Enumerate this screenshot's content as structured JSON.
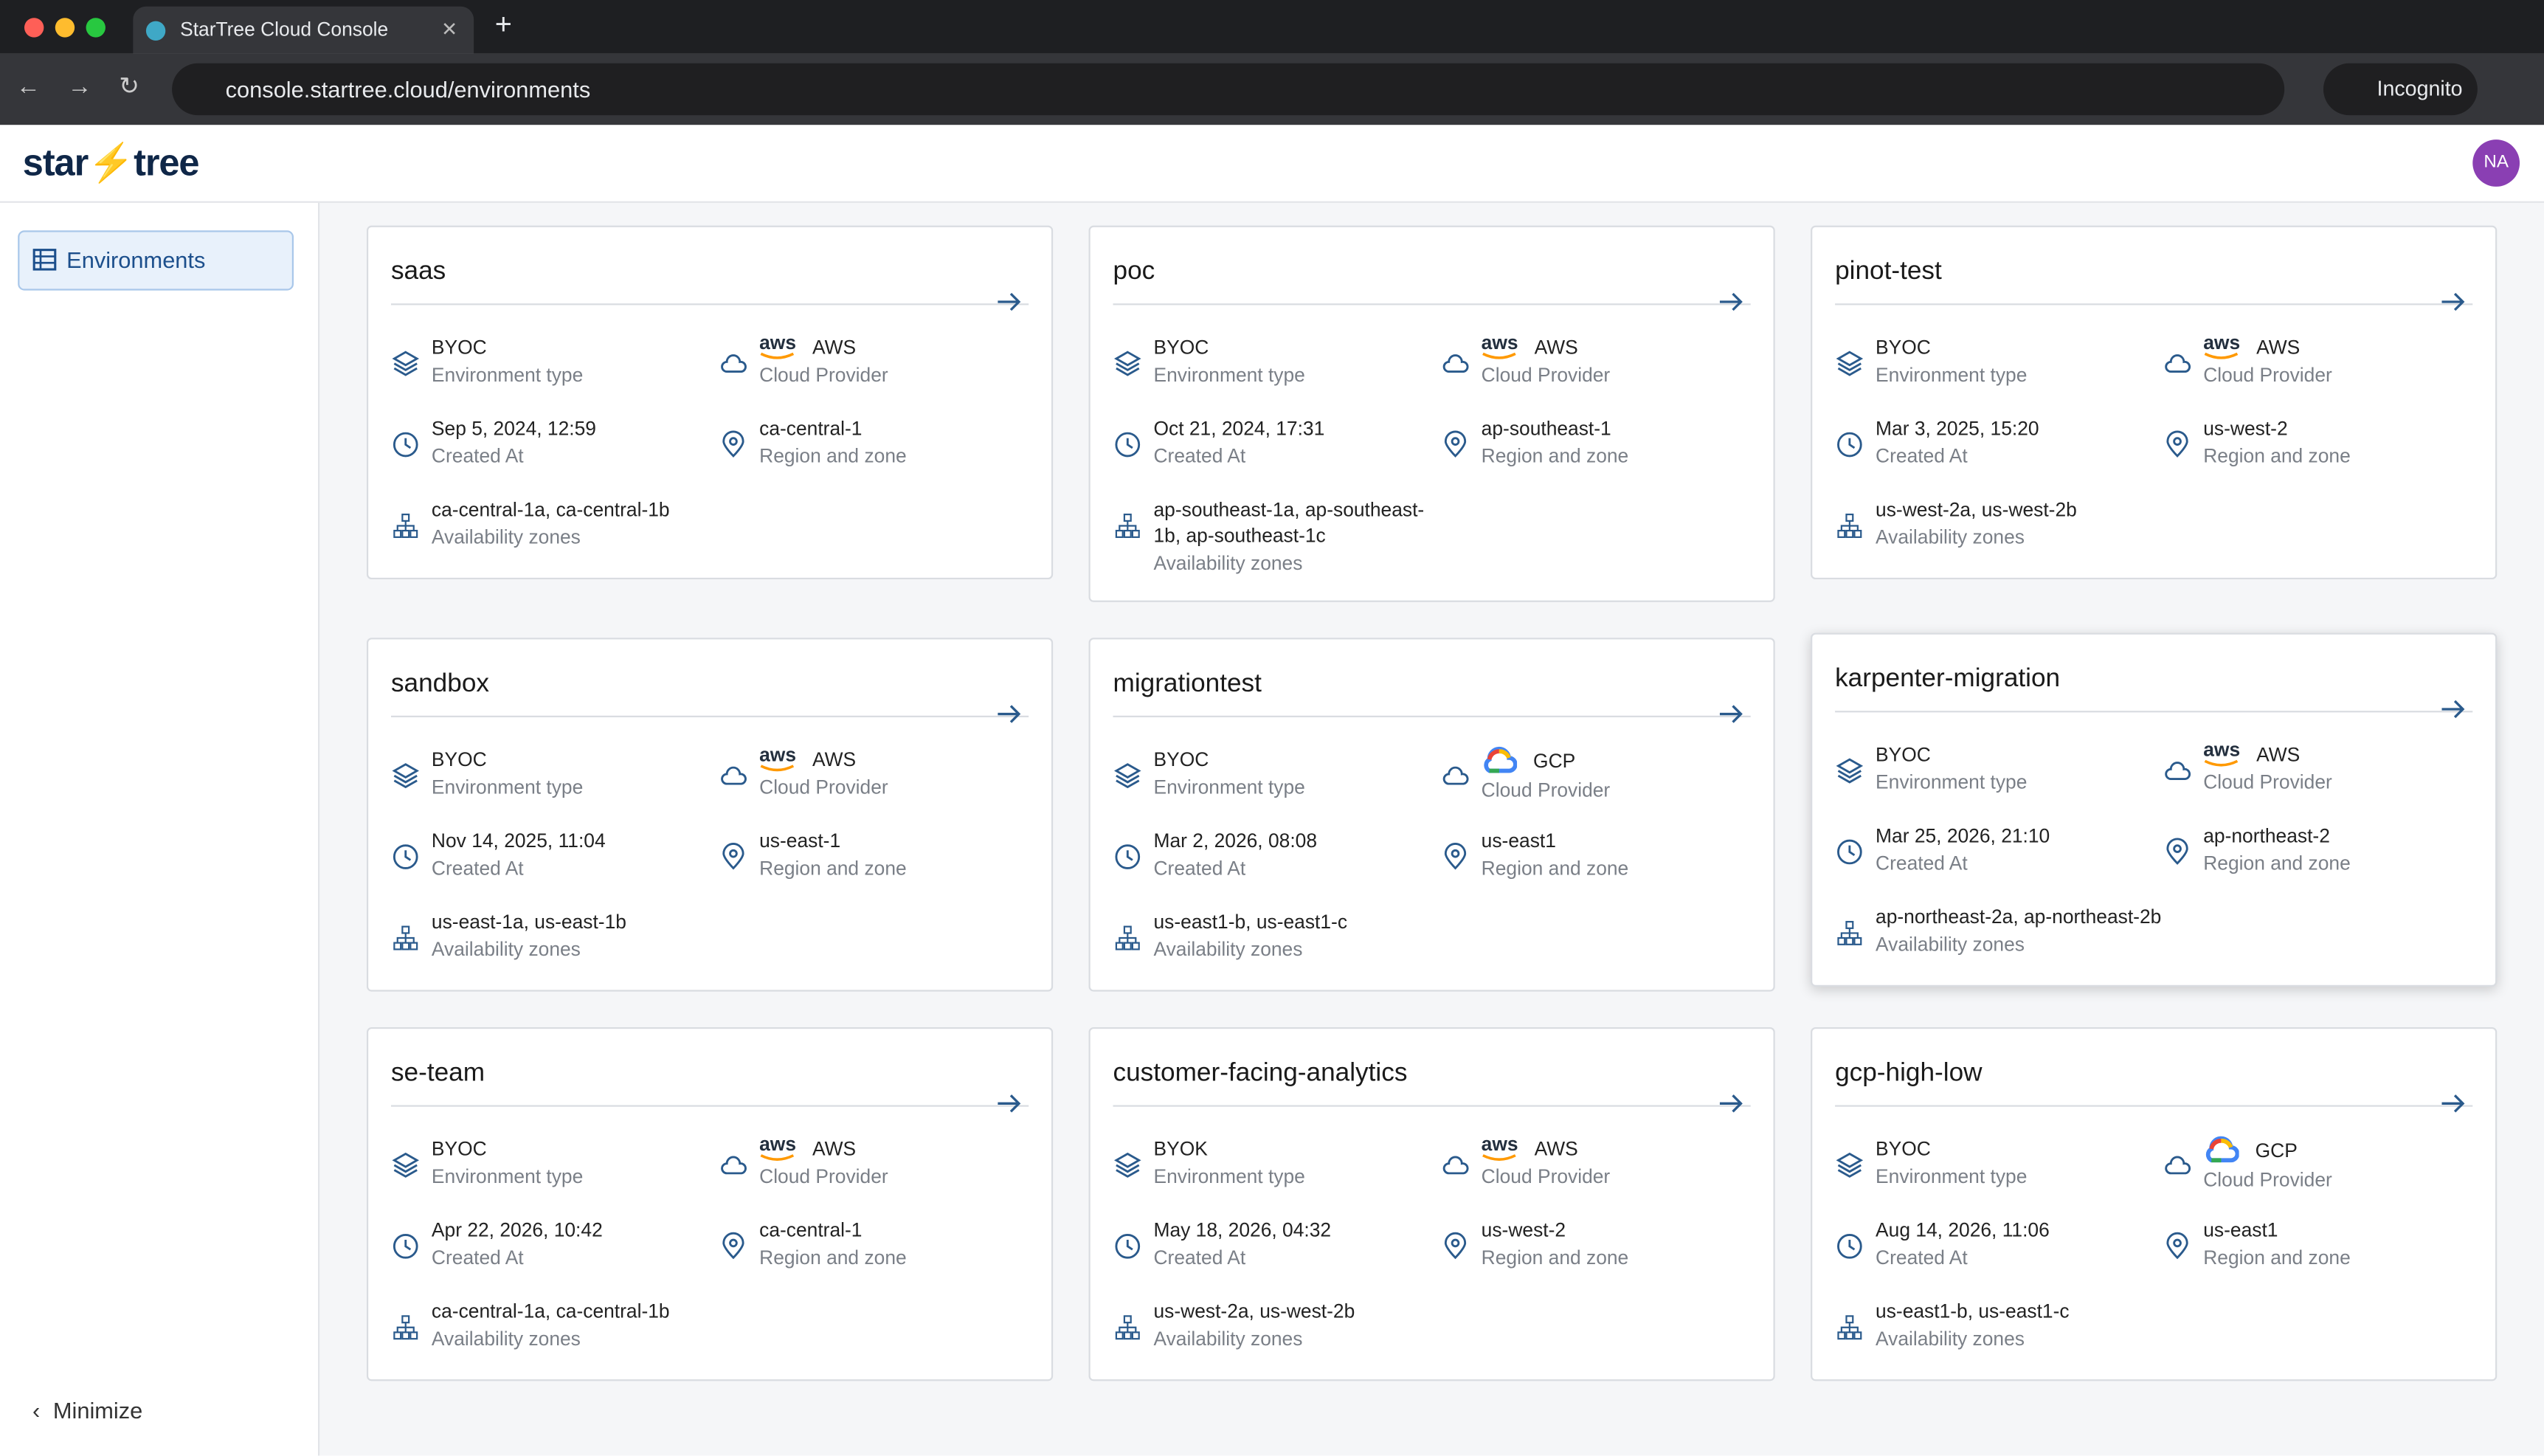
{
  "browser": {
    "tab_title": "StarTree Cloud Console",
    "url": "console.startree.cloud/environments",
    "incognito": "Incognito"
  },
  "header": {
    "logo_left": "star",
    "logo_right": "tree",
    "avatar": "NA"
  },
  "sidebar": {
    "nav": "Environments",
    "minimize": "Minimize"
  },
  "cards": [
    {
      "name": "saas",
      "type": {
        "value": "BYOC",
        "label": "Environment type"
      },
      "provider": {
        "logo": "aws",
        "value": "AWS",
        "label": "Cloud Provider"
      },
      "created": {
        "value": "Sep 5, 2024, 12:59",
        "label": "Created At"
      },
      "region": {
        "value": "ca-central-1",
        "label": "Region and zone"
      },
      "zones": {
        "value": "ca-central-1a, ca-central-1b",
        "label": "Availability zones"
      }
    },
    {
      "name": "poc",
      "type": {
        "value": "BYOC",
        "label": "Environment type"
      },
      "provider": {
        "logo": "aws",
        "value": "AWS",
        "label": "Cloud Provider"
      },
      "created": {
        "value": "Oct 21, 2024, 17:31",
        "label": "Created At"
      },
      "region": {
        "value": "ap-southeast-1",
        "label": "Region and zone"
      },
      "zones": {
        "value": "ap-southeast-1a, ap-southeast-1b, ap-southeast-1c",
        "label": "Availability zones"
      }
    },
    {
      "name": "pinot-test",
      "type": {
        "value": "BYOC",
        "label": "Environment type"
      },
      "provider": {
        "logo": "aws",
        "value": "AWS",
        "label": "Cloud Provider"
      },
      "created": {
        "value": "Mar 3, 2025, 15:20",
        "label": "Created At"
      },
      "region": {
        "value": "us-west-2",
        "label": "Region and zone"
      },
      "zones": {
        "value": "us-west-2a, us-west-2b",
        "label": "Availability zones"
      }
    },
    {
      "name": "sandbox",
      "type": {
        "value": "BYOC",
        "label": "Environment type"
      },
      "provider": {
        "logo": "aws",
        "value": "AWS",
        "label": "Cloud Provider"
      },
      "created": {
        "value": "Nov 14, 2025, 11:04",
        "label": "Created At"
      },
      "region": {
        "value": "us-east-1",
        "label": "Region and zone"
      },
      "zones": {
        "value": "us-east-1a, us-east-1b",
        "label": "Availability zones"
      }
    },
    {
      "name": "migrationtest",
      "type": {
        "value": "BYOC",
        "label": "Environment type"
      },
      "provider": {
        "value": "GCP",
        "label": "Cloud Provider"
      },
      "created": {
        "value": "Mar 2, 2026, 08:08",
        "label": "Created At"
      },
      "region": {
        "value": "us-east1",
        "label": "Region and zone"
      },
      "zones": {
        "value": "us-east1-b, us-east1-c",
        "label": "Availability zones"
      }
    },
    {
      "name": "karpenter-migration",
      "type": {
        "value": "BYOC",
        "label": "Environment type"
      },
      "provider": {
        "logo": "aws",
        "value": "AWS",
        "label": "Cloud Provider"
      },
      "created": {
        "value": "Mar 25, 2026, 21:10",
        "label": "Created At"
      },
      "region": {
        "value": "ap-northeast-2",
        "label": "Region and zone"
      },
      "zones": {
        "value": "ap-northeast-2a, ap-northeast-2b",
        "label": "Availability zones"
      }
    },
    {
      "name": "se-team",
      "type": {
        "value": "BYOC",
        "label": "Environment type"
      },
      "provider": {
        "logo": "aws",
        "value": "AWS",
        "label": "Cloud Provider"
      },
      "created": {
        "value": "Apr 22, 2026, 10:42",
        "label": "Created At"
      },
      "region": {
        "value": "ca-central-1",
        "label": "Region and zone"
      },
      "zones": {
        "value": "ca-central-1a, ca-central-1b",
        "label": "Availability zones"
      }
    },
    {
      "name": "customer-facing-analytics",
      "type": {
        "value": "BYOK",
        "label": "Environment type"
      },
      "provider": {
        "logo": "aws",
        "value": "AWS",
        "label": "Cloud Provider"
      },
      "created": {
        "value": "May 18, 2026, 04:32",
        "label": "Created At"
      },
      "region": {
        "value": "us-west-2",
        "label": "Region and zone"
      },
      "zones": {
        "value": "us-west-2a, us-west-2b",
        "label": "Availability zones"
      }
    },
    {
      "name": "gcp-high-low",
      "type": {
        "value": "BYOC",
        "label": "Environment type"
      },
      "provider": {
        "value": "GCP",
        "label": "Cloud Provider"
      },
      "created": {
        "value": "Aug 14, 2026, 11:06",
        "label": "Created At"
      },
      "region": {
        "value": "us-east1",
        "label": "Region and zone"
      },
      "zones": {
        "value": "us-east1-b, us-east1-c",
        "label": "Availability zones"
      }
    }
  ]
}
